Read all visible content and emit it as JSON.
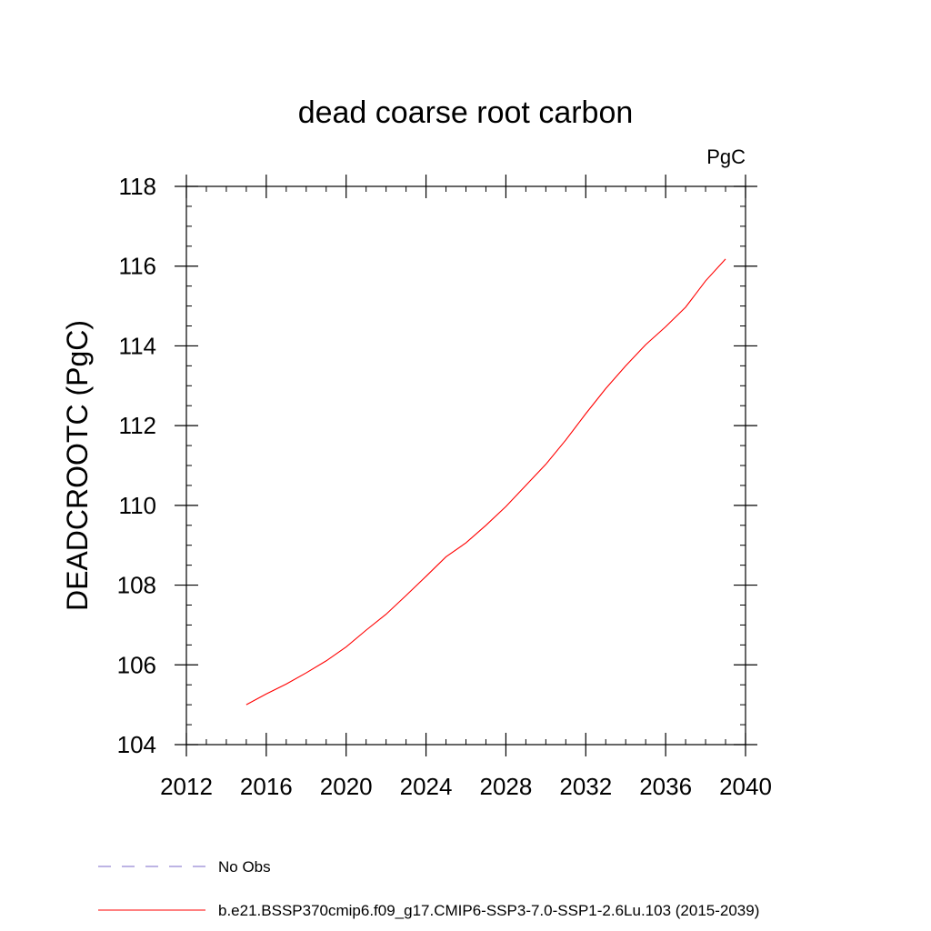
{
  "chart_data": {
    "type": "line",
    "title": "dead coarse root carbon",
    "units_label": "PgC",
    "ylabel": "DEADCROOTC  (PgC)",
    "xlabel": "",
    "xlim": [
      2012,
      2040
    ],
    "ylim": [
      104,
      118
    ],
    "x_ticks": [
      2012,
      2016,
      2020,
      2024,
      2028,
      2032,
      2036,
      2040
    ],
    "y_ticks": [
      104,
      106,
      108,
      110,
      112,
      114,
      116,
      118
    ],
    "x_tick_labels": [
      "2012",
      "2016",
      "2020",
      "2024",
      "2028",
      "2032",
      "2036",
      "2040"
    ],
    "y_tick_labels": [
      "104",
      "106",
      "108",
      "110",
      "112",
      "114",
      "116",
      "118"
    ],
    "x_minor_step": 1,
    "y_minor_step": 0.5,
    "grid": false,
    "series": [
      {
        "name": "b.e21.BSSP370cmip6.f09_g17.CMIP6-SSP3-7.0-SSP1-2.6Lu.103 (2015-2039)",
        "color": "#ff0000",
        "line_style": "solid",
        "x": [
          2015,
          2016,
          2017,
          2018,
          2019,
          2020,
          2021,
          2022,
          2023,
          2024,
          2025,
          2026,
          2027,
          2028,
          2029,
          2030,
          2031,
          2032,
          2033,
          2034,
          2035,
          2036,
          2037,
          2038,
          2039
        ],
        "values": [
          105.0,
          105.27,
          105.52,
          105.8,
          106.1,
          106.45,
          106.87,
          107.27,
          107.74,
          108.22,
          108.71,
          109.06,
          109.5,
          109.97,
          110.5,
          111.03,
          111.64,
          112.3,
          112.93,
          113.5,
          114.03,
          114.48,
          114.97,
          115.63,
          116.18
        ]
      }
    ],
    "legend": {
      "placement": "bottom-left",
      "entries": [
        {
          "label": "No Obs",
          "color": "#7b68c8",
          "line_style": "dashed"
        },
        {
          "label": "b.e21.BSSP370cmip6.f09_g17.CMIP6-SSP3-7.0-SSP1-2.6Lu.103 (2015-2039)",
          "color": "#ff0000",
          "line_style": "solid"
        }
      ]
    }
  }
}
